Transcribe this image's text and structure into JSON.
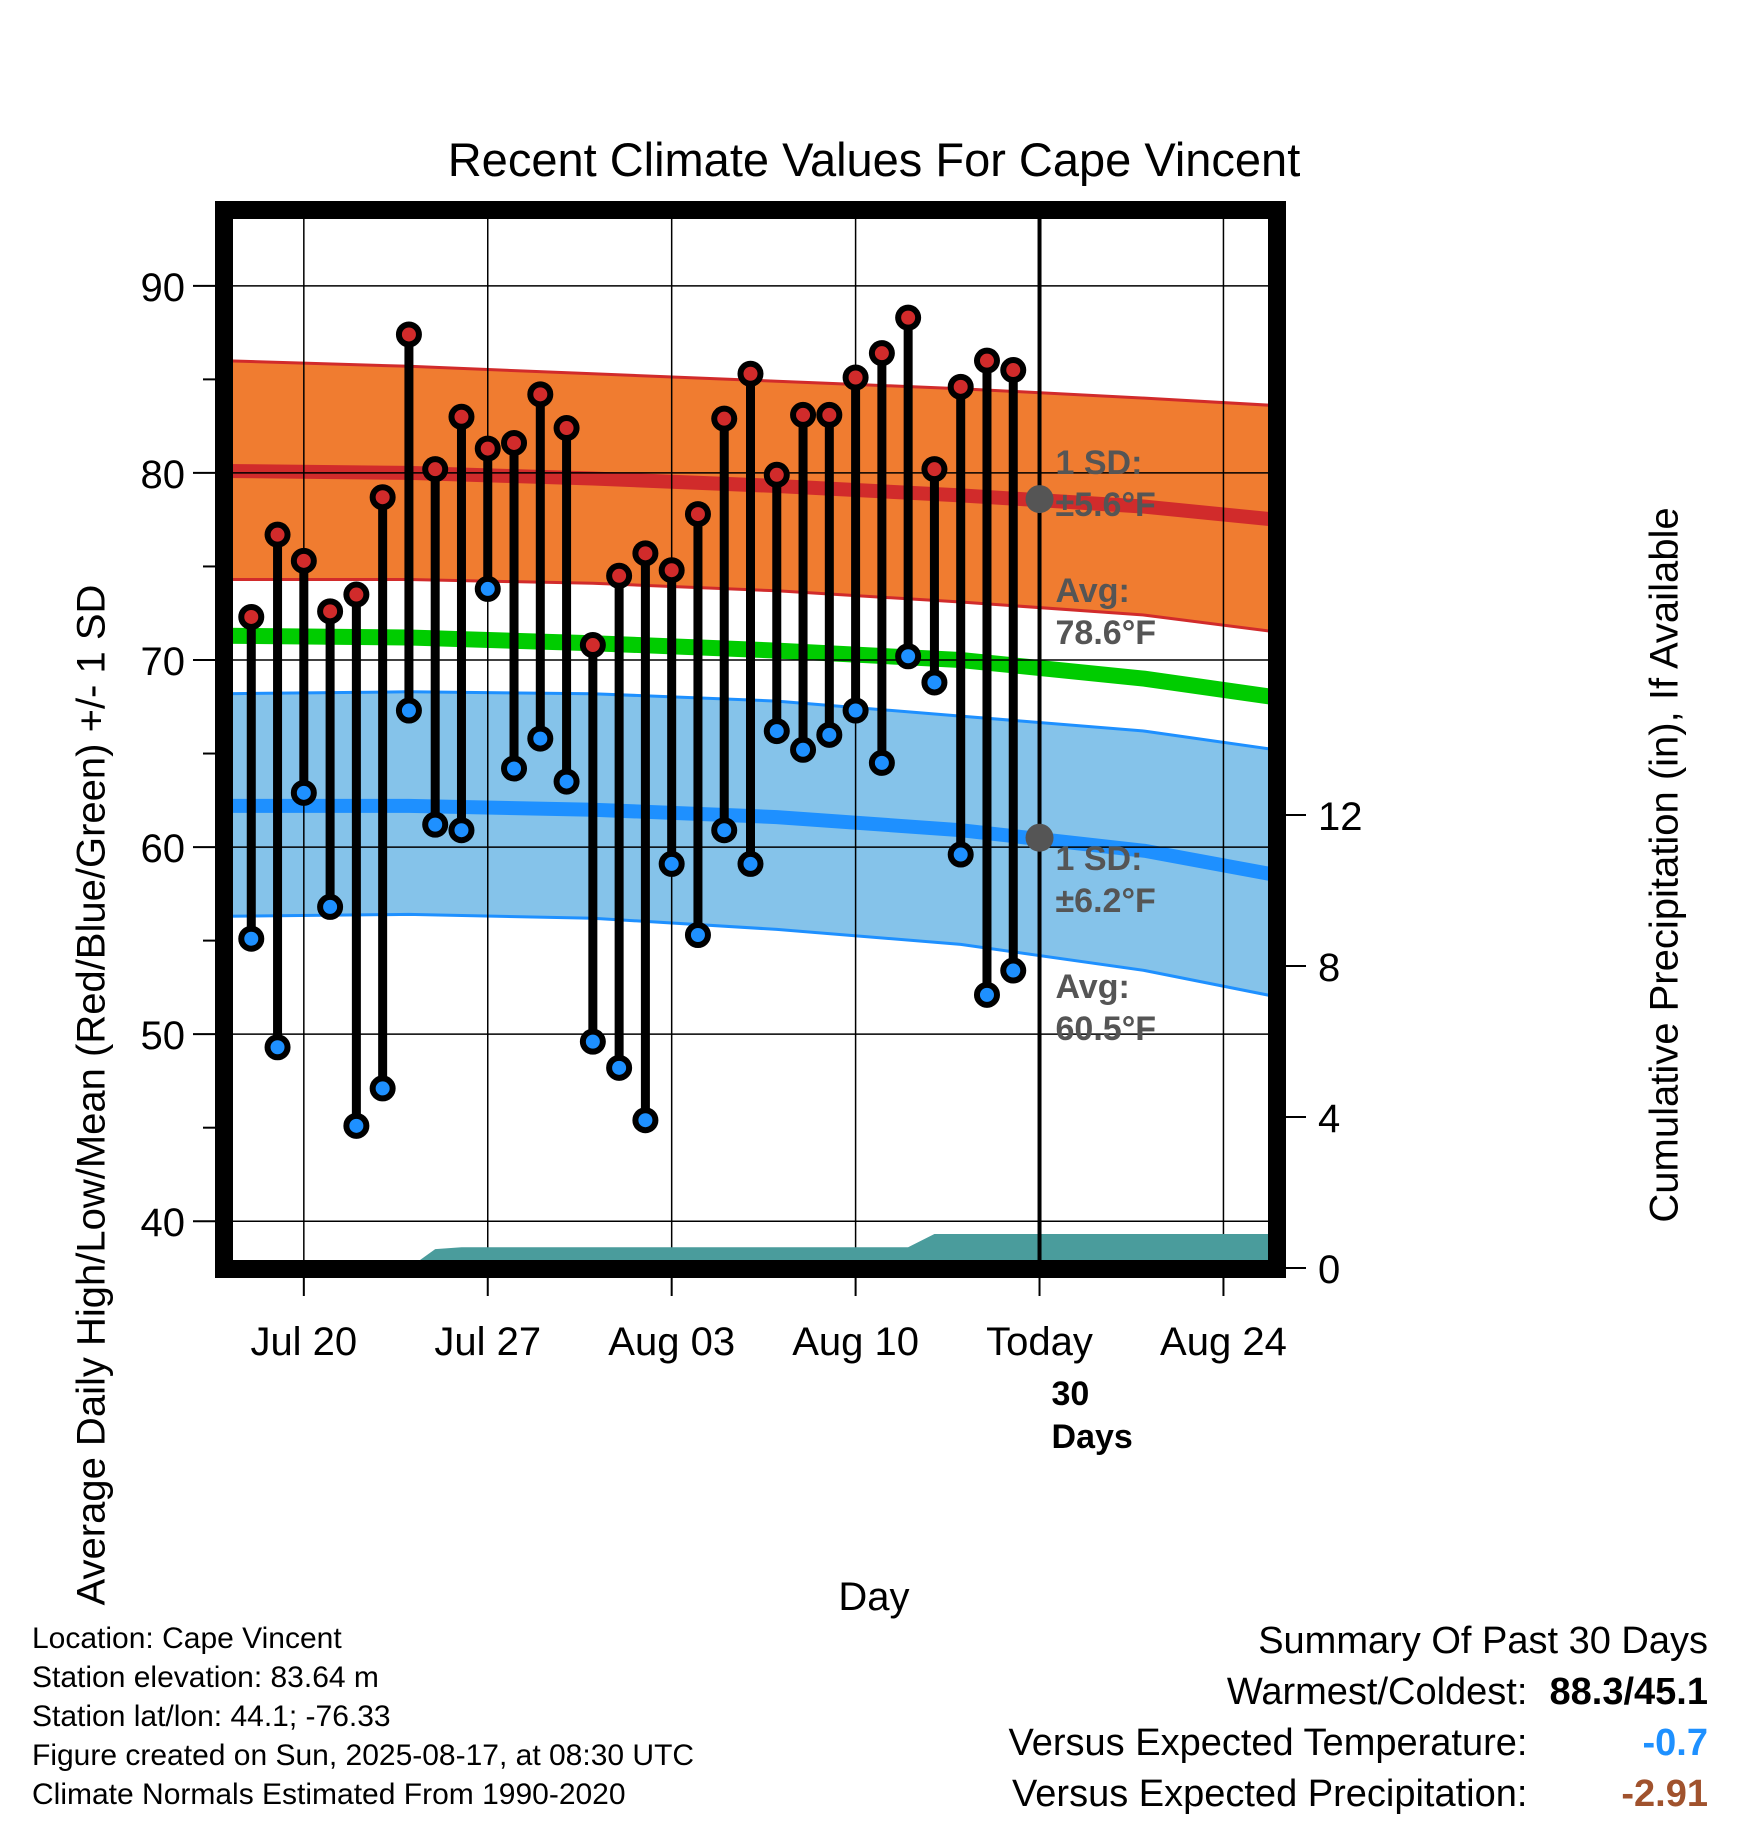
{
  "chart_data": {
    "type": "line",
    "title": "Recent Climate Values For Cape Vincent",
    "xlabel": "Day",
    "ylabel": "Average Daily High/Low/Mean (Red/Blue/Green) +/- 1 SD",
    "y2label": "Cumulative Precipitation (in), If Available",
    "ylim": [
      37.5,
      94
    ],
    "y2lim": [
      0,
      28
    ],
    "yticks": [
      40,
      50,
      60,
      70,
      80,
      90
    ],
    "y2ticks": [
      0,
      4,
      8,
      12
    ],
    "xlim": [
      "2025-07-17",
      "2025-08-26"
    ],
    "xticks": [
      {
        "date": "2025-07-20",
        "label": "Jul 20"
      },
      {
        "date": "2025-07-27",
        "label": "Jul 27"
      },
      {
        "date": "2025-08-03",
        "label": "Aug 03"
      },
      {
        "date": "2025-08-10",
        "label": "Aug 10"
      },
      {
        "date": "2025-08-17",
        "label": "Today"
      },
      {
        "date": "2025-08-24",
        "label": "Aug 24"
      }
    ],
    "grid": true,
    "days": [
      "2025-07-18",
      "2025-07-19",
      "2025-07-20",
      "2025-07-21",
      "2025-07-22",
      "2025-07-23",
      "2025-07-24",
      "2025-07-25",
      "2025-07-26",
      "2025-07-27",
      "2025-07-28",
      "2025-07-29",
      "2025-07-30",
      "2025-07-31",
      "2025-08-01",
      "2025-08-02",
      "2025-08-03",
      "2025-08-04",
      "2025-08-05",
      "2025-08-06",
      "2025-08-07",
      "2025-08-08",
      "2025-08-09",
      "2025-08-10",
      "2025-08-11",
      "2025-08-12",
      "2025-08-13",
      "2025-08-14",
      "2025-08-15",
      "2025-08-16"
    ],
    "highs": [
      72.3,
      76.7,
      75.3,
      72.6,
      73.5,
      78.7,
      87.4,
      80.2,
      83.0,
      81.3,
      81.6,
      84.2,
      82.4,
      70.8,
      74.5,
      75.7,
      74.8,
      77.8,
      82.9,
      85.3,
      79.9,
      83.1,
      83.1,
      85.1,
      86.4,
      88.3,
      80.2,
      84.6,
      86.0,
      85.5
    ],
    "lows": [
      55.1,
      49.3,
      62.9,
      56.8,
      45.1,
      47.1,
      67.3,
      61.2,
      60.9,
      73.8,
      64.2,
      65.8,
      63.5,
      49.6,
      48.2,
      45.4,
      59.1,
      55.3,
      60.9,
      59.1,
      66.2,
      65.2,
      66.0,
      67.3,
      64.5,
      70.2,
      68.8,
      59.6,
      52.1,
      53.4
    ],
    "normals": {
      "dates": [
        "2025-07-17",
        "2025-07-24",
        "2025-07-31",
        "2025-08-07",
        "2025-08-14",
        "2025-08-21",
        "2025-08-26"
      ],
      "high_avg": [
        80.1,
        80.0,
        79.7,
        79.3,
        78.8,
        78.2,
        77.5
      ],
      "high_upper": [
        86.0,
        85.7,
        85.3,
        84.9,
        84.5,
        84.0,
        83.6
      ],
      "high_lower": [
        74.3,
        74.3,
        74.1,
        73.7,
        73.1,
        72.4,
        71.5
      ],
      "mean_avg": [
        71.3,
        71.2,
        70.9,
        70.5,
        70.0,
        69.0,
        68.0
      ],
      "low_avg": [
        62.2,
        62.2,
        62.0,
        61.6,
        60.9,
        59.8,
        58.5
      ],
      "low_upper": [
        68.2,
        68.3,
        68.2,
        67.8,
        67.0,
        66.2,
        65.2
      ],
      "low_lower": [
        56.3,
        56.4,
        56.2,
        55.6,
        54.8,
        53.4,
        52.0
      ]
    },
    "precip_cumulative": {
      "dates": [
        "2025-07-17",
        "2025-07-24",
        "2025-07-25",
        "2025-07-26",
        "2025-08-12",
        "2025-08-13",
        "2025-08-26"
      ],
      "values": [
        0,
        0,
        0.5,
        0.55,
        0.55,
        0.9,
        0.9
      ]
    },
    "today": "2025-08-17",
    "today_marker": "30\nDays",
    "annotations": {
      "high_sd_label": "1 SD:",
      "high_sd_value": "±5.6°F",
      "high_avg_label": "Avg:",
      "high_avg_value": "78.6°F",
      "high_avg_today": 78.6,
      "low_sd_label": "1 SD:",
      "low_sd_value": "±6.2°F",
      "low_avg_label": "Avg:",
      "low_avg_value": "60.5°F",
      "low_avg_today": 60.5
    },
    "colors": {
      "high_band": "#f07c30",
      "high_line": "#d12b2b",
      "mean_line": "#00cc00",
      "low_band": "#85c3ea",
      "low_line": "#1e90ff",
      "precip": "#4a9c9c",
      "high_dot": "#d12b2b",
      "low_dot": "#1e90ff",
      "annotation": "#555555"
    }
  },
  "info": [
    "Location: Cape Vincent",
    "Station elevation: 83.64 m",
    "Station lat/lon: 44.1; -76.33",
    "Figure created on Sun, 2025-08-17, at 08:30 UTC",
    "Climate Normals Estimated From 1990-2020"
  ],
  "summary": {
    "title": "Summary Of Past 30 Days",
    "warm_cold_label": "Warmest/Coldest:",
    "warm_cold_value": "88.3/45.1",
    "temp_label": "Versus Expected Temperature:",
    "temp_value": "-0.7",
    "temp_color": "#1e90ff",
    "precip_label": "Versus Expected Precipitation:",
    "precip_value": "-2.91",
    "precip_color": "#a0522d"
  }
}
